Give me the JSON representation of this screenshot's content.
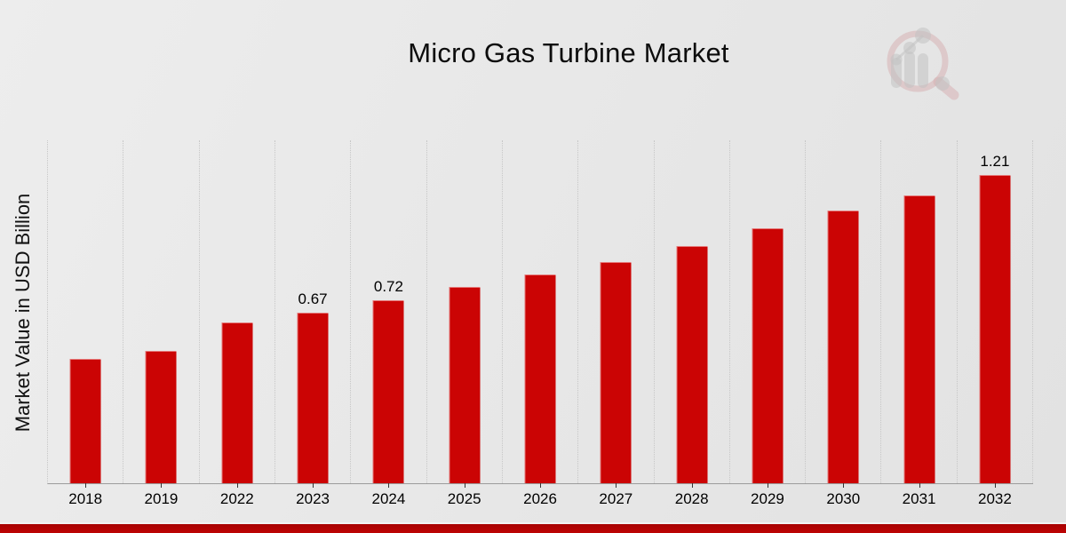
{
  "title": "Micro Gas Turbine Market",
  "y_axis_title": "Market Value in USD Billion",
  "colors": {
    "bar": "#cb0404",
    "bottom_strip": "#b30303",
    "background": "#e8e8e8",
    "gridline": "#c7c7c7",
    "axis_line": "#9c9c9c",
    "text": "#0c0c0c",
    "logo_accent": "#c98084",
    "logo_gray": "#a8a8a8"
  },
  "logo_name": "market-research-future-watermark",
  "chart_data": {
    "type": "bar",
    "title": "Micro Gas Turbine Market",
    "xlabel": "",
    "ylabel": "Market Value in USD Billion",
    "ylim": [
      0,
      1.35
    ],
    "grid": "vertical-dotted",
    "legend": false,
    "bar_color": "#cb0404",
    "categories": [
      "2018",
      "2019",
      "2022",
      "2023",
      "2024",
      "2025",
      "2026",
      "2027",
      "2028",
      "2029",
      "2030",
      "2031",
      "2032"
    ],
    "values": [
      0.49,
      0.52,
      0.63,
      0.67,
      0.72,
      0.77,
      0.82,
      0.87,
      0.93,
      1.0,
      1.07,
      1.13,
      1.21
    ],
    "data_labels": [
      "",
      "",
      "",
      "0.67",
      "0.72",
      "",
      "",
      "",
      "",
      "",
      "",
      "",
      "1.21"
    ]
  }
}
